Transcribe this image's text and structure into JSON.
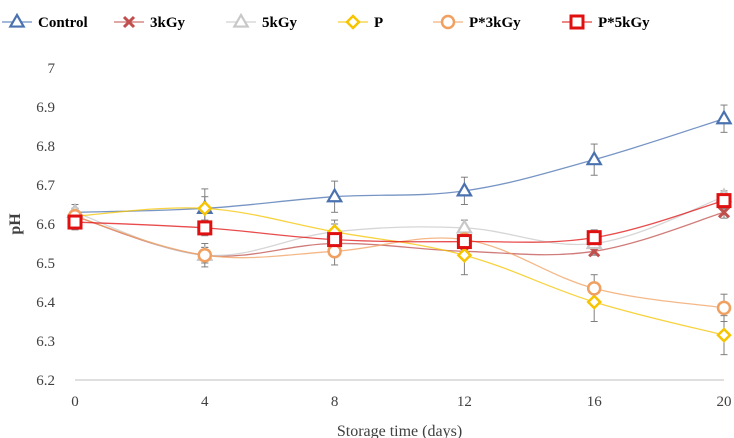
{
  "chart_data": {
    "type": "line",
    "xlabel": "Storage time (days)",
    "ylabel": "pH",
    "x": [
      0,
      4,
      8,
      12,
      16,
      20
    ],
    "xticks": [
      "0",
      "4",
      "8",
      "12",
      "16",
      "20"
    ],
    "ylim": [
      6.2,
      7.0
    ],
    "yticks": [
      "6.2",
      "6.3",
      "6.4",
      "6.5",
      "6.6",
      "6.7",
      "6.8",
      "6.9",
      "7"
    ],
    "grid": false,
    "legend_position": "top",
    "series": [
      {
        "name": "Control",
        "color": "#4a72b0",
        "marker": "triangle",
        "values": [
          6.63,
          6.64,
          6.67,
          6.685,
          6.765,
          6.87
        ],
        "errors": [
          0.02,
          0.05,
          0.04,
          0.035,
          0.04,
          0.035
        ]
      },
      {
        "name": "3kGy",
        "color": "#c0504d",
        "marker": "x",
        "values": [
          6.62,
          6.52,
          6.55,
          6.53,
          6.53,
          6.63
        ],
        "errors": [
          0.02,
          0.02,
          0.02,
          0.02,
          0.01,
          0.015
        ]
      },
      {
        "name": "5kGy",
        "color": "#c8c8c8",
        "marker": "triangle",
        "values": [
          6.63,
          6.52,
          6.58,
          6.59,
          6.55,
          6.67
        ],
        "errors": [
          0.02,
          0.02,
          0.02,
          0.02,
          0.01,
          0.015
        ]
      },
      {
        "name": "P",
        "color": "#f6c400",
        "marker": "diamond",
        "values": [
          6.62,
          6.64,
          6.58,
          6.52,
          6.4,
          6.315
        ],
        "errors": [
          0.02,
          0.03,
          0.03,
          0.05,
          0.05,
          0.05
        ]
      },
      {
        "name": "P*3kGy",
        "color": "#f0a060",
        "marker": "circle",
        "values": [
          6.62,
          6.52,
          6.53,
          6.56,
          6.435,
          6.385
        ],
        "errors": [
          0.02,
          0.03,
          0.035,
          0.02,
          0.035,
          0.035
        ]
      },
      {
        "name": "P*5kGy",
        "color": "#e01010",
        "marker": "square",
        "values": [
          6.605,
          6.59,
          6.56,
          6.555,
          6.565,
          6.66
        ],
        "errors": [
          0.02,
          0.02,
          0.02,
          0.02,
          0.02,
          0.02
        ]
      }
    ]
  }
}
